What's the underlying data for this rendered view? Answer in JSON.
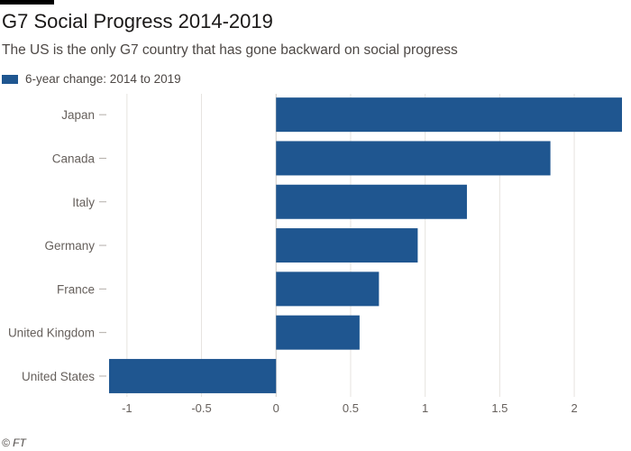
{
  "header": {
    "title": "G7 Social Progress 2014-2019",
    "subtitle": "The US is the only G7 country that has gone backward on social progress"
  },
  "legend": {
    "label": "6-year change: 2014 to 2019"
  },
  "colors": {
    "bar": "#1f5690",
    "grid": "#e6e3df",
    "axis_text": "#66605c"
  },
  "chart_data": {
    "type": "bar",
    "orientation": "horizontal",
    "title": "G7 Social Progress 2014-2019",
    "series": [
      {
        "name": "6-year change: 2014 to 2019",
        "values": [
          2.32,
          1.84,
          1.28,
          0.95,
          0.69,
          0.56,
          -1.12
        ]
      }
    ],
    "categories": [
      "Japan",
      "Canada",
      "Italy",
      "Germany",
      "France",
      "United Kingdom",
      "United States"
    ],
    "xlim": [
      -1.12,
      2.32
    ],
    "xticks": [
      -1,
      -0.5,
      0,
      0.5,
      1,
      1.5,
      2
    ],
    "xtick_labels": [
      "-1",
      "-0.5",
      "0",
      "0.5",
      "1",
      "1.5",
      "2"
    ],
    "xlabel": "",
    "ylabel": "",
    "grid": true
  },
  "footer": {
    "source": "© FT"
  }
}
